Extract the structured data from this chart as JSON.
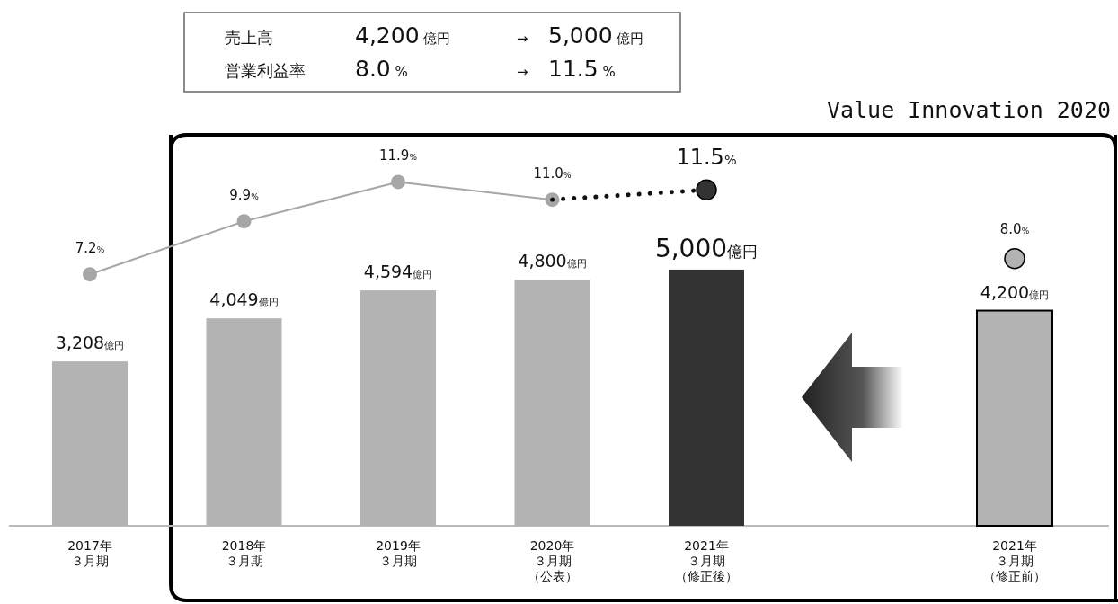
{
  "chart_data": {
    "type": "bar",
    "title": "Value Innovation 2020",
    "categories": [
      "2017年３月期",
      "2018年３月期",
      "2019年３月期",
      "2020年３月期（公表）",
      "2021年３月期（修正後）",
      null,
      "2021年３月期（修正前）"
    ],
    "annotations": [
      "売上高",
      "4,200 億円",
      "→",
      "5,000 億円",
      "営業利益率",
      "8.0 %",
      "→",
      "11.5 %"
    ],
    "ylim": [
      0,
      7630
    ],
    "y2lim": [
      -5.6,
      14.3
    ],
    "marker": "circle",
    "series": [
      {
        "values": [
          3208,
          4049,
          4594,
          4800,
          5000,
          null,
          4200
        ],
        "colors": [
          "#b3b3b3",
          "#b3b3b3",
          "#b3b3b3",
          "#b3b3b3",
          "#333333",
          null,
          "#b3b3b3"
        ],
        "value_labels": [
          "3,208億円",
          "4,049億円",
          "4,594億円",
          "4,800億円",
          "5,000億円",
          null,
          "4,200億円"
        ]
      },
      {
        "type": "line",
        "axis": "y2",
        "color": "#a6a6a6",
        "line_style": "solid",
        "values": [
          7.2,
          9.9,
          11.9,
          11.0,
          null,
          null,
          null
        ],
        "value_labels": [
          "7.2%",
          "9.9%",
          "11.9%",
          "11.0%",
          null,
          null,
          null
        ]
      },
      {
        "type": "line",
        "axis": "y2",
        "color": "#111111",
        "line_style": "dotted",
        "marker": "none",
        "values": [
          null,
          null,
          null,
          11.0,
          11.5,
          null,
          null
        ]
      },
      {
        "type": "scatter",
        "axis": "y2",
        "color": "#333333",
        "values": [
          null,
          null,
          null,
          null,
          11.5,
          null,
          null
        ],
        "value_labels": [
          null,
          null,
          null,
          null,
          "11.5%",
          null,
          null
        ]
      },
      {
        "type": "scatter",
        "axis": "y2",
        "color": "#b3b3b3",
        "values": [
          null,
          null,
          null,
          null,
          null,
          null,
          8.0
        ],
        "value_labels": [
          null,
          null,
          null,
          null,
          null,
          null,
          "8.0%"
        ]
      }
    ]
  }
}
